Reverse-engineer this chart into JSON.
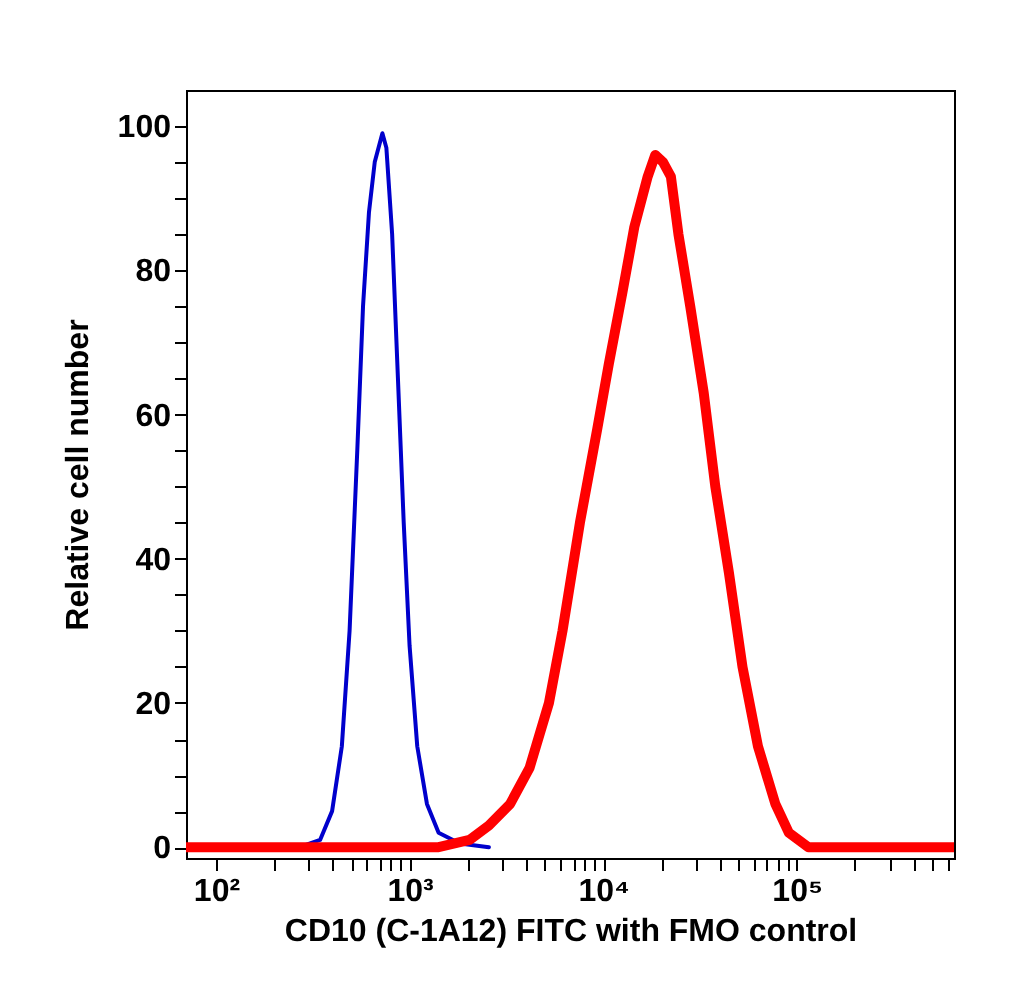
{
  "chart_data": {
    "type": "line",
    "xlabel": "CD10 (C-1A12) FITC with FMO control",
    "ylabel": "Relative cell number",
    "log": "x",
    "marker": "none",
    "line_style": "solid",
    "xlim": [
      70,
      650000
    ],
    "ylim": [
      -1.5,
      105
    ],
    "xticks": [
      {
        "value": 100,
        "label": "10²"
      },
      {
        "value": 200,
        "label": null
      },
      {
        "value": 300,
        "label": null
      },
      {
        "value": 400,
        "label": null
      },
      {
        "value": 500,
        "label": null
      },
      {
        "value": 600,
        "label": null
      },
      {
        "value": 700,
        "label": null
      },
      {
        "value": 800,
        "label": null
      },
      {
        "value": 900,
        "label": null
      },
      {
        "value": 1000,
        "label": "10³"
      },
      {
        "value": 2000,
        "label": null
      },
      {
        "value": 3000,
        "label": null
      },
      {
        "value": 4000,
        "label": null
      },
      {
        "value": 5000,
        "label": null
      },
      {
        "value": 6000,
        "label": null
      },
      {
        "value": 7000,
        "label": null
      },
      {
        "value": 8000,
        "label": null
      },
      {
        "value": 9000,
        "label": null
      },
      {
        "value": 10000,
        "label": "10⁴"
      },
      {
        "value": 20000,
        "label": null
      },
      {
        "value": 30000,
        "label": null
      },
      {
        "value": 40000,
        "label": null
      },
      {
        "value": 50000,
        "label": null
      },
      {
        "value": 60000,
        "label": null
      },
      {
        "value": 70000,
        "label": null
      },
      {
        "value": 80000,
        "label": null
      },
      {
        "value": 90000,
        "label": null
      },
      {
        "value": 100000,
        "label": "10⁵"
      },
      {
        "value": 200000,
        "label": null
      },
      {
        "value": 300000,
        "label": null
      },
      {
        "value": 400000,
        "label": null
      },
      {
        "value": 500000,
        "label": null
      },
      {
        "value": 600000,
        "label": null
      }
    ],
    "yticks": [
      0,
      {
        "value": 5,
        "label": null
      },
      {
        "value": 10,
        "label": null
      },
      {
        "value": 15,
        "label": null
      },
      20,
      {
        "value": 25,
        "label": null
      },
      {
        "value": 30,
        "label": null
      },
      {
        "value": 35,
        "label": null
      },
      40,
      {
        "value": 45,
        "label": null
      },
      {
        "value": 50,
        "label": null
      },
      {
        "value": 55,
        "label": null
      },
      60,
      {
        "value": 65,
        "label": null
      },
      {
        "value": 70,
        "label": null
      },
      {
        "value": 75,
        "label": null
      },
      80,
      {
        "value": 85,
        "label": null
      },
      {
        "value": 90,
        "label": null
      },
      {
        "value": 95,
        "label": null
      },
      100
    ],
    "series": [
      {
        "color": "#0000cc",
        "x": [
          70,
          270,
          345,
          398,
          447,
          490,
          537,
          575,
          617,
          661,
          724,
          759,
          813,
          871,
          933,
          1000,
          1096,
          1230,
          1413,
          1820,
          2570
        ],
        "values": [
          0,
          0,
          1,
          5,
          14,
          30,
          55,
          75,
          88,
          95,
          99,
          97,
          85,
          65,
          45,
          28,
          14,
          6,
          2,
          0.5,
          0
        ]
      },
      {
        "color": "#ff0000",
        "x": [
          70,
          1413,
          2040,
          2570,
          3310,
          4170,
          5250,
          6170,
          7590,
          9330,
          10700,
          12600,
          14500,
          17000,
          18600,
          20400,
          22400,
          24500,
          28200,
          33100,
          38000,
          44700,
          52500,
          63100,
          77600,
          91200,
          115000,
          650000
        ],
        "values": [
          0,
          0,
          1,
          3,
          6,
          11,
          20,
          30,
          45,
          58,
          67,
          77,
          86,
          93,
          96,
          95,
          93,
          85,
          75,
          63,
          50,
          38,
          25,
          14,
          6,
          2,
          0,
          0
        ]
      }
    ]
  }
}
